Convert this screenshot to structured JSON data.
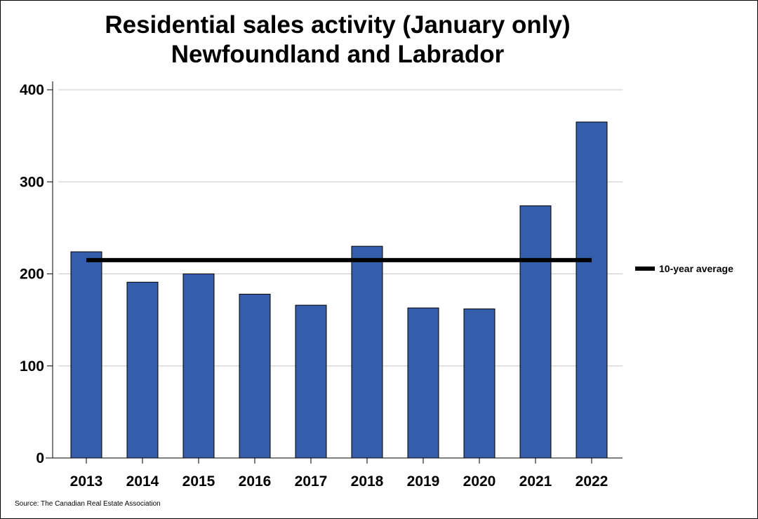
{
  "chart_data": {
    "type": "bar",
    "title": [
      "Residential sales activity (January only)",
      "Newfoundland and Labrador"
    ],
    "categories": [
      "2013",
      "2014",
      "2015",
      "2016",
      "2017",
      "2018",
      "2019",
      "2020",
      "2021",
      "2022"
    ],
    "series": [
      {
        "values": [
          224,
          191,
          200,
          178,
          166,
          230,
          163,
          162,
          274,
          365
        ]
      }
    ],
    "reference_line": {
      "name": "10-year average",
      "value": 215
    },
    "ylim": [
      0,
      400
    ],
    "yticks": [
      0,
      100,
      200,
      300,
      400
    ],
    "xlabel": "",
    "ylabel": "",
    "grid": true,
    "legend_position": "right",
    "source": "Source: The Canadian Real Estate Association"
  },
  "colors": {
    "bar_fill": "#345eab",
    "bar_stroke": "#000000",
    "average_line": "#000000",
    "gridline": "#c8c8c8"
  }
}
